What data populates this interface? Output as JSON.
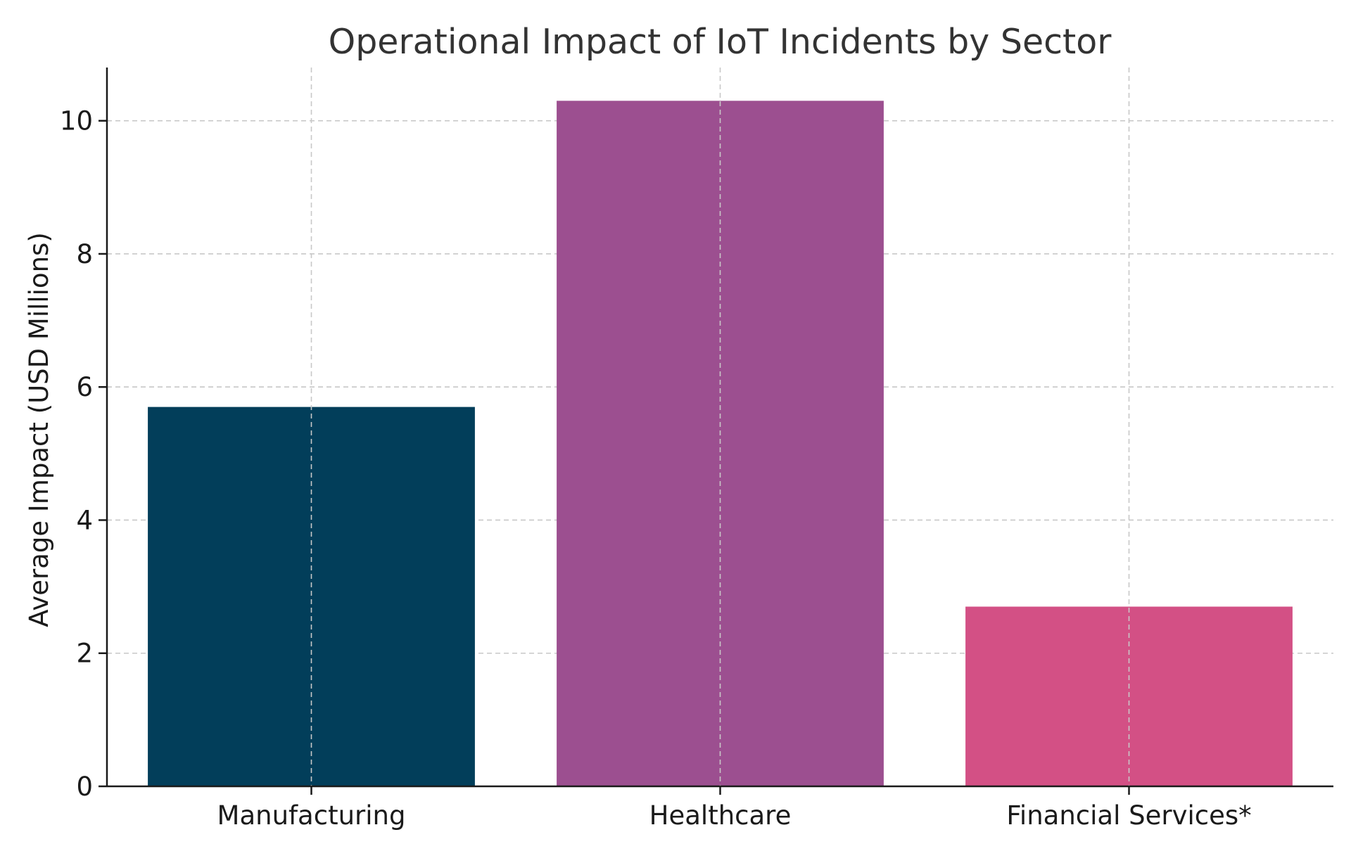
{
  "chart_data": {
    "type": "bar",
    "title": "Operational Impact of IoT Incidents by Sector",
    "xlabel": "",
    "ylabel": "Average Impact (USD Millions)",
    "categories": [
      "Manufacturing",
      "Healthcare",
      "Financial Services*"
    ],
    "values": [
      5.7,
      10.3,
      2.7
    ],
    "colors": [
      "#023e5a",
      "#9c4f90",
      "#d35085"
    ],
    "ylim": [
      0,
      10.8
    ],
    "yticks": [
      0,
      2,
      4,
      6,
      8,
      10
    ],
    "grid": true,
    "legend": "none"
  }
}
